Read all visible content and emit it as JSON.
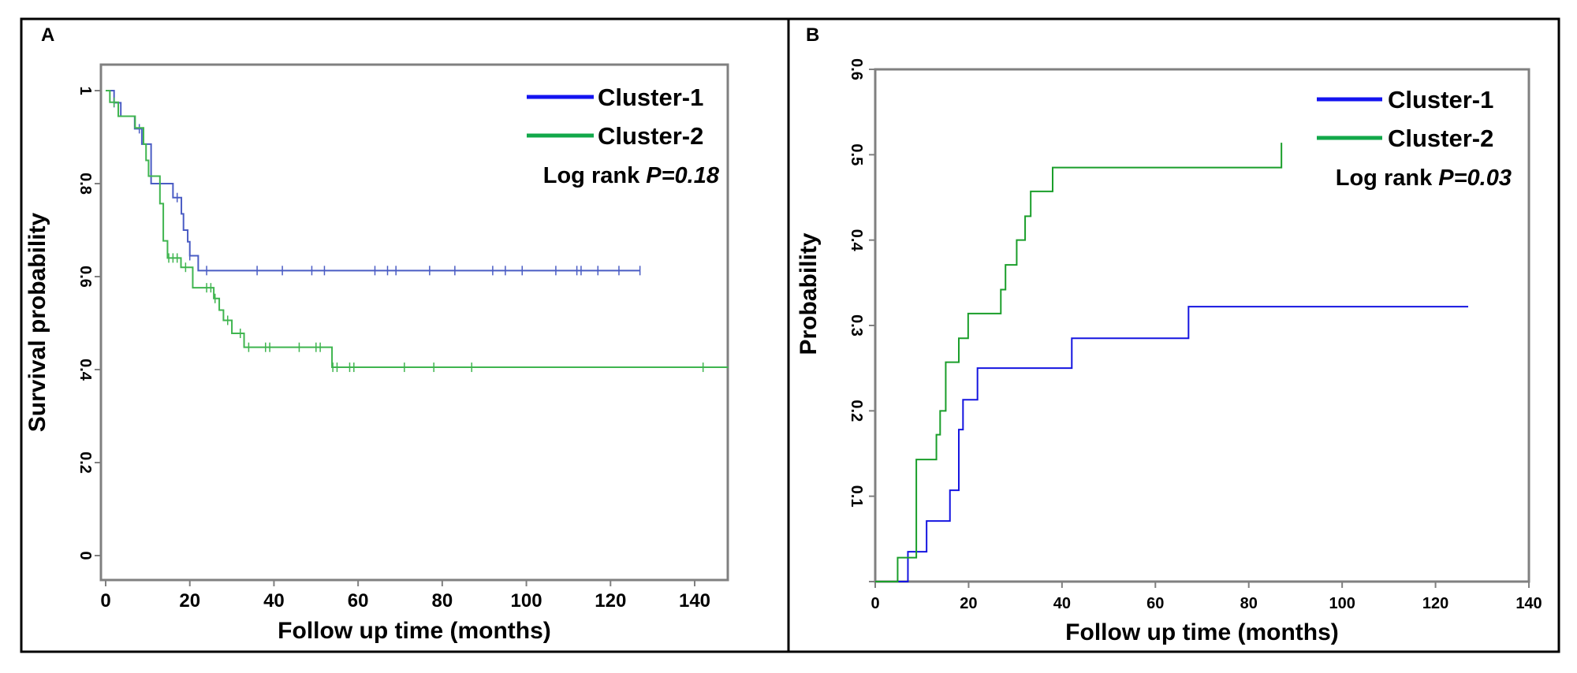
{
  "colors": {
    "cluster1_A": "#4a5cc4",
    "cluster2_A": "#3fb54f",
    "cluster1_B": "#1515e0",
    "cluster2_B": "#1a9e2a",
    "legend_cluster1": "#1414f0",
    "legend_cluster2": "#12a84a",
    "axis": "#808080"
  },
  "chart_data": [
    {
      "panel_label": "A",
      "type": "line",
      "step": true,
      "xlabel": "Follow up time (months)",
      "ylabel": "Survival probability",
      "xlim": [
        0,
        148
      ],
      "ylim": [
        -0.05,
        1.05
      ],
      "xticks": [
        "0",
        "20",
        "40",
        "60",
        "80",
        "100",
        "120",
        "140"
      ],
      "yticks": [
        "0",
        "0.2",
        "0.4",
        "0.6",
        "0.8",
        "1"
      ],
      "legend_position": "top-right",
      "annotation": {
        "prefix": "Log rank ",
        "p": "P=0.18"
      },
      "series": [
        {
          "name": "Cluster-1",
          "steps": [
            [
              0,
              1.0
            ],
            [
              2,
              0.974
            ],
            [
              3.6,
              0.945
            ],
            [
              6.9,
              0.918
            ],
            [
              8.6,
              0.885
            ],
            [
              10.8,
              0.8
            ],
            [
              16,
              0.77
            ],
            [
              18,
              0.735
            ],
            [
              18.5,
              0.7
            ],
            [
              19.5,
              0.675
            ],
            [
              20,
              0.645
            ],
            [
              22,
              0.613
            ]
          ],
          "end": 127,
          "censored": [
            2,
            8,
            17,
            20,
            24,
            36,
            42,
            49,
            52,
            64,
            67,
            69,
            77,
            83,
            92,
            95,
            99,
            107,
            112,
            113,
            117,
            122,
            127
          ]
        },
        {
          "name": "Cluster-2",
          "steps": [
            [
              0,
              1.0
            ],
            [
              1,
              0.975
            ],
            [
              3,
              0.945
            ],
            [
              7,
              0.92
            ],
            [
              9,
              0.885
            ],
            [
              9.6,
              0.85
            ],
            [
              10.2,
              0.816
            ],
            [
              12.9,
              0.757
            ],
            [
              13.7,
              0.677
            ],
            [
              14.7,
              0.64
            ],
            [
              17.9,
              0.62
            ],
            [
              20.7,
              0.576
            ],
            [
              25.7,
              0.553
            ],
            [
              27,
              0.528
            ],
            [
              28,
              0.506
            ],
            [
              30,
              0.478
            ],
            [
              32.9,
              0.448
            ],
            [
              53.8,
              0.405
            ]
          ],
          "end": 148,
          "censored": [
            2,
            15,
            16,
            17,
            19,
            24,
            25,
            26,
            29,
            32,
            34,
            38,
            39,
            46,
            50,
            51,
            54,
            55,
            58,
            59,
            71,
            78,
            87,
            142
          ]
        }
      ]
    },
    {
      "panel_label": "B",
      "type": "line",
      "step": true,
      "xlabel": "Follow up time (months)",
      "ylabel": "Probability",
      "xlim": [
        0,
        140
      ],
      "ylim": [
        0,
        0.6
      ],
      "xticks": [
        "0",
        "20",
        "40",
        "60",
        "80",
        "100",
        "120",
        "140"
      ],
      "yticks": [
        "0.1",
        "0.2",
        "0.3",
        "0.4",
        "0.5",
        "0.6"
      ],
      "legend_position": "top-right",
      "annotation": {
        "prefix": "Log rank ",
        "p": "P=0.03"
      },
      "series": [
        {
          "name": "Cluster-1",
          "steps": [
            [
              0,
              0
            ],
            [
              7,
              0.035
            ],
            [
              11,
              0.071
            ],
            [
              16,
              0.107
            ],
            [
              17.9,
              0.178
            ],
            [
              18.8,
              0.213
            ],
            [
              21.9,
              0.25
            ],
            [
              42.1,
              0.285
            ],
            [
              67.1,
              0.322
            ]
          ],
          "end": 127,
          "censored": []
        },
        {
          "name": "Cluster-2",
          "steps": [
            [
              0,
              0
            ],
            [
              4.8,
              0.028
            ],
            [
              8.8,
              0.143
            ],
            [
              13.1,
              0.172
            ],
            [
              13.9,
              0.2
            ],
            [
              15.1,
              0.257
            ],
            [
              17.9,
              0.285
            ],
            [
              19.9,
              0.314
            ],
            [
              26.9,
              0.342
            ],
            [
              27.9,
              0.371
            ],
            [
              30.3,
              0.4
            ],
            [
              32.1,
              0.428
            ],
            [
              33.3,
              0.457
            ],
            [
              38,
              0.485
            ],
            [
              87,
              0.514
            ]
          ],
          "end": 87,
          "censored": []
        }
      ]
    }
  ]
}
